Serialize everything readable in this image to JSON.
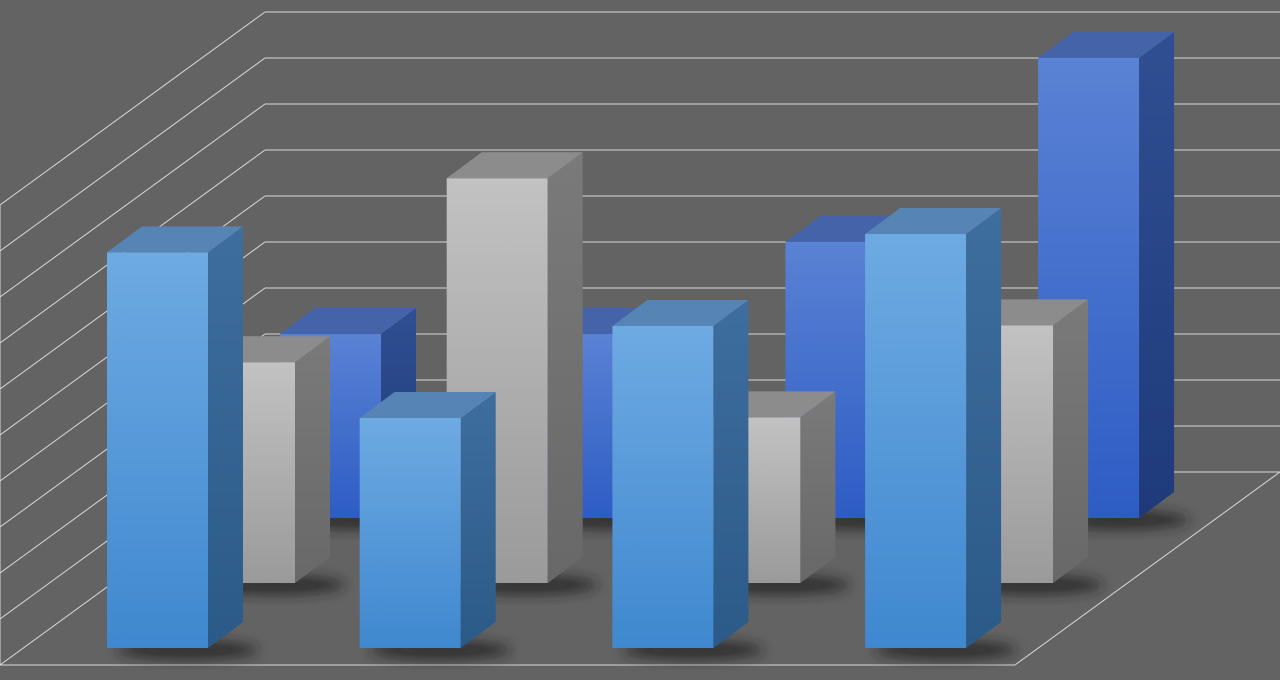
{
  "chart_data": {
    "type": "bar",
    "style": "3d-clustered-depth",
    "title": "",
    "xlabel": "",
    "ylabel": "",
    "ylim": [
      0,
      10
    ],
    "grid": true,
    "legend": "none",
    "background_color": "#636363",
    "grid_color": "#d8d8d8",
    "series": [
      {
        "row": "back",
        "color": "#3f68c8",
        "values": [
          4.0,
          4.0,
          6.0,
          10.0
        ]
      },
      {
        "row": "middle",
        "color": "#b0b0b0",
        "values": [
          4.8,
          8.8,
          3.6,
          5.6
        ]
      },
      {
        "row": "front",
        "color": "#5a9ad8",
        "values": [
          8.6,
          5.0,
          7.0,
          9.0
        ]
      }
    ]
  }
}
